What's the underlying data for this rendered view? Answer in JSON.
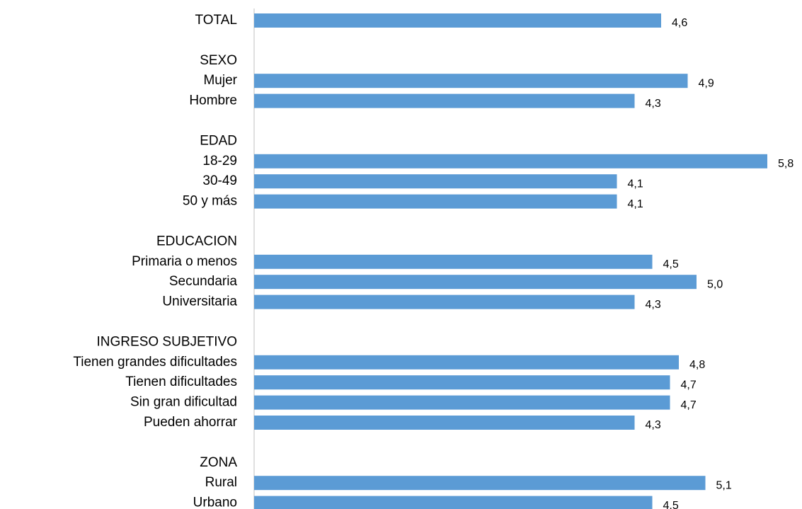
{
  "chart_data": {
    "type": "hbar",
    "color": "#5b9bd5",
    "categories": [
      "TOTAL",
      "SEXO",
      "Mujer",
      "Hombre",
      "EDAD",
      "18-29",
      "30-49",
      "50 y más",
      "EDUCACION",
      "Primaria o menos",
      "Secundaria",
      "Universitaria",
      "INGRESO SUBJETIVO",
      "Tienen grandes dificultades",
      "Tienen dificultades",
      "Sin gran dificultad",
      "Pueden ahorrar",
      "ZONA",
      "Rural",
      "Urbano"
    ],
    "values": [
      4.6,
      null,
      4.9,
      4.3,
      null,
      5.8,
      4.1,
      4.1,
      null,
      4.5,
      5.0,
      4.3,
      null,
      4.8,
      4.7,
      4.7,
      4.3,
      null,
      5.1,
      4.5
    ],
    "value_labels": [
      "4,6",
      null,
      "4,9",
      "4,3",
      null,
      "5,8",
      "4,1",
      "4,1",
      null,
      "4,5",
      "5,0",
      "4,3",
      null,
      "4,8",
      "4,7",
      "4,7",
      "4,3",
      null,
      "5,1",
      "4,5"
    ],
    "xlim": [
      0,
      6
    ]
  }
}
